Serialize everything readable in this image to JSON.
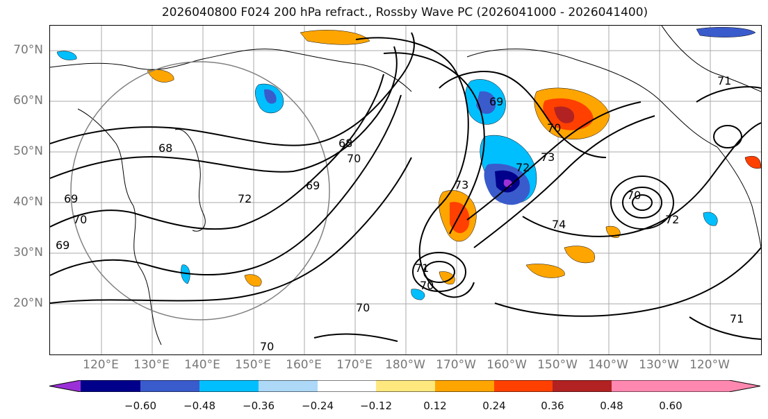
{
  "title": "2026040800 F024 200 hPa refract., Rossby Wave PC (2026041000 - 2026041400)",
  "lat_labels": [
    "70°N",
    "60°N",
    "50°N",
    "40°N",
    "30°N",
    "20°N"
  ],
  "lon_labels": [
    "120°E",
    "130°E",
    "140°E",
    "150°E",
    "160°E",
    "170°E",
    "180°W",
    "170°W",
    "160°W",
    "150°W",
    "140°W",
    "130°W",
    "120°W"
  ],
  "contour_labels": [
    "68",
    "69",
    "70",
    "71",
    "72",
    "73",
    "74"
  ],
  "colorbar": {
    "ticks": [
      "−0.60",
      "−0.48",
      "−0.36",
      "−0.24",
      "−0.12",
      "0.12",
      "0.24",
      "0.36",
      "0.48",
      "0.60"
    ],
    "colors": [
      "#9b30d9",
      "#00008b",
      "#3a5bcc",
      "#00bfff",
      "#add8f7",
      "#ffffff",
      "#ffe97f",
      "#ffa500",
      "#ff4000",
      "#b22222",
      "#ff88b0"
    ]
  }
}
